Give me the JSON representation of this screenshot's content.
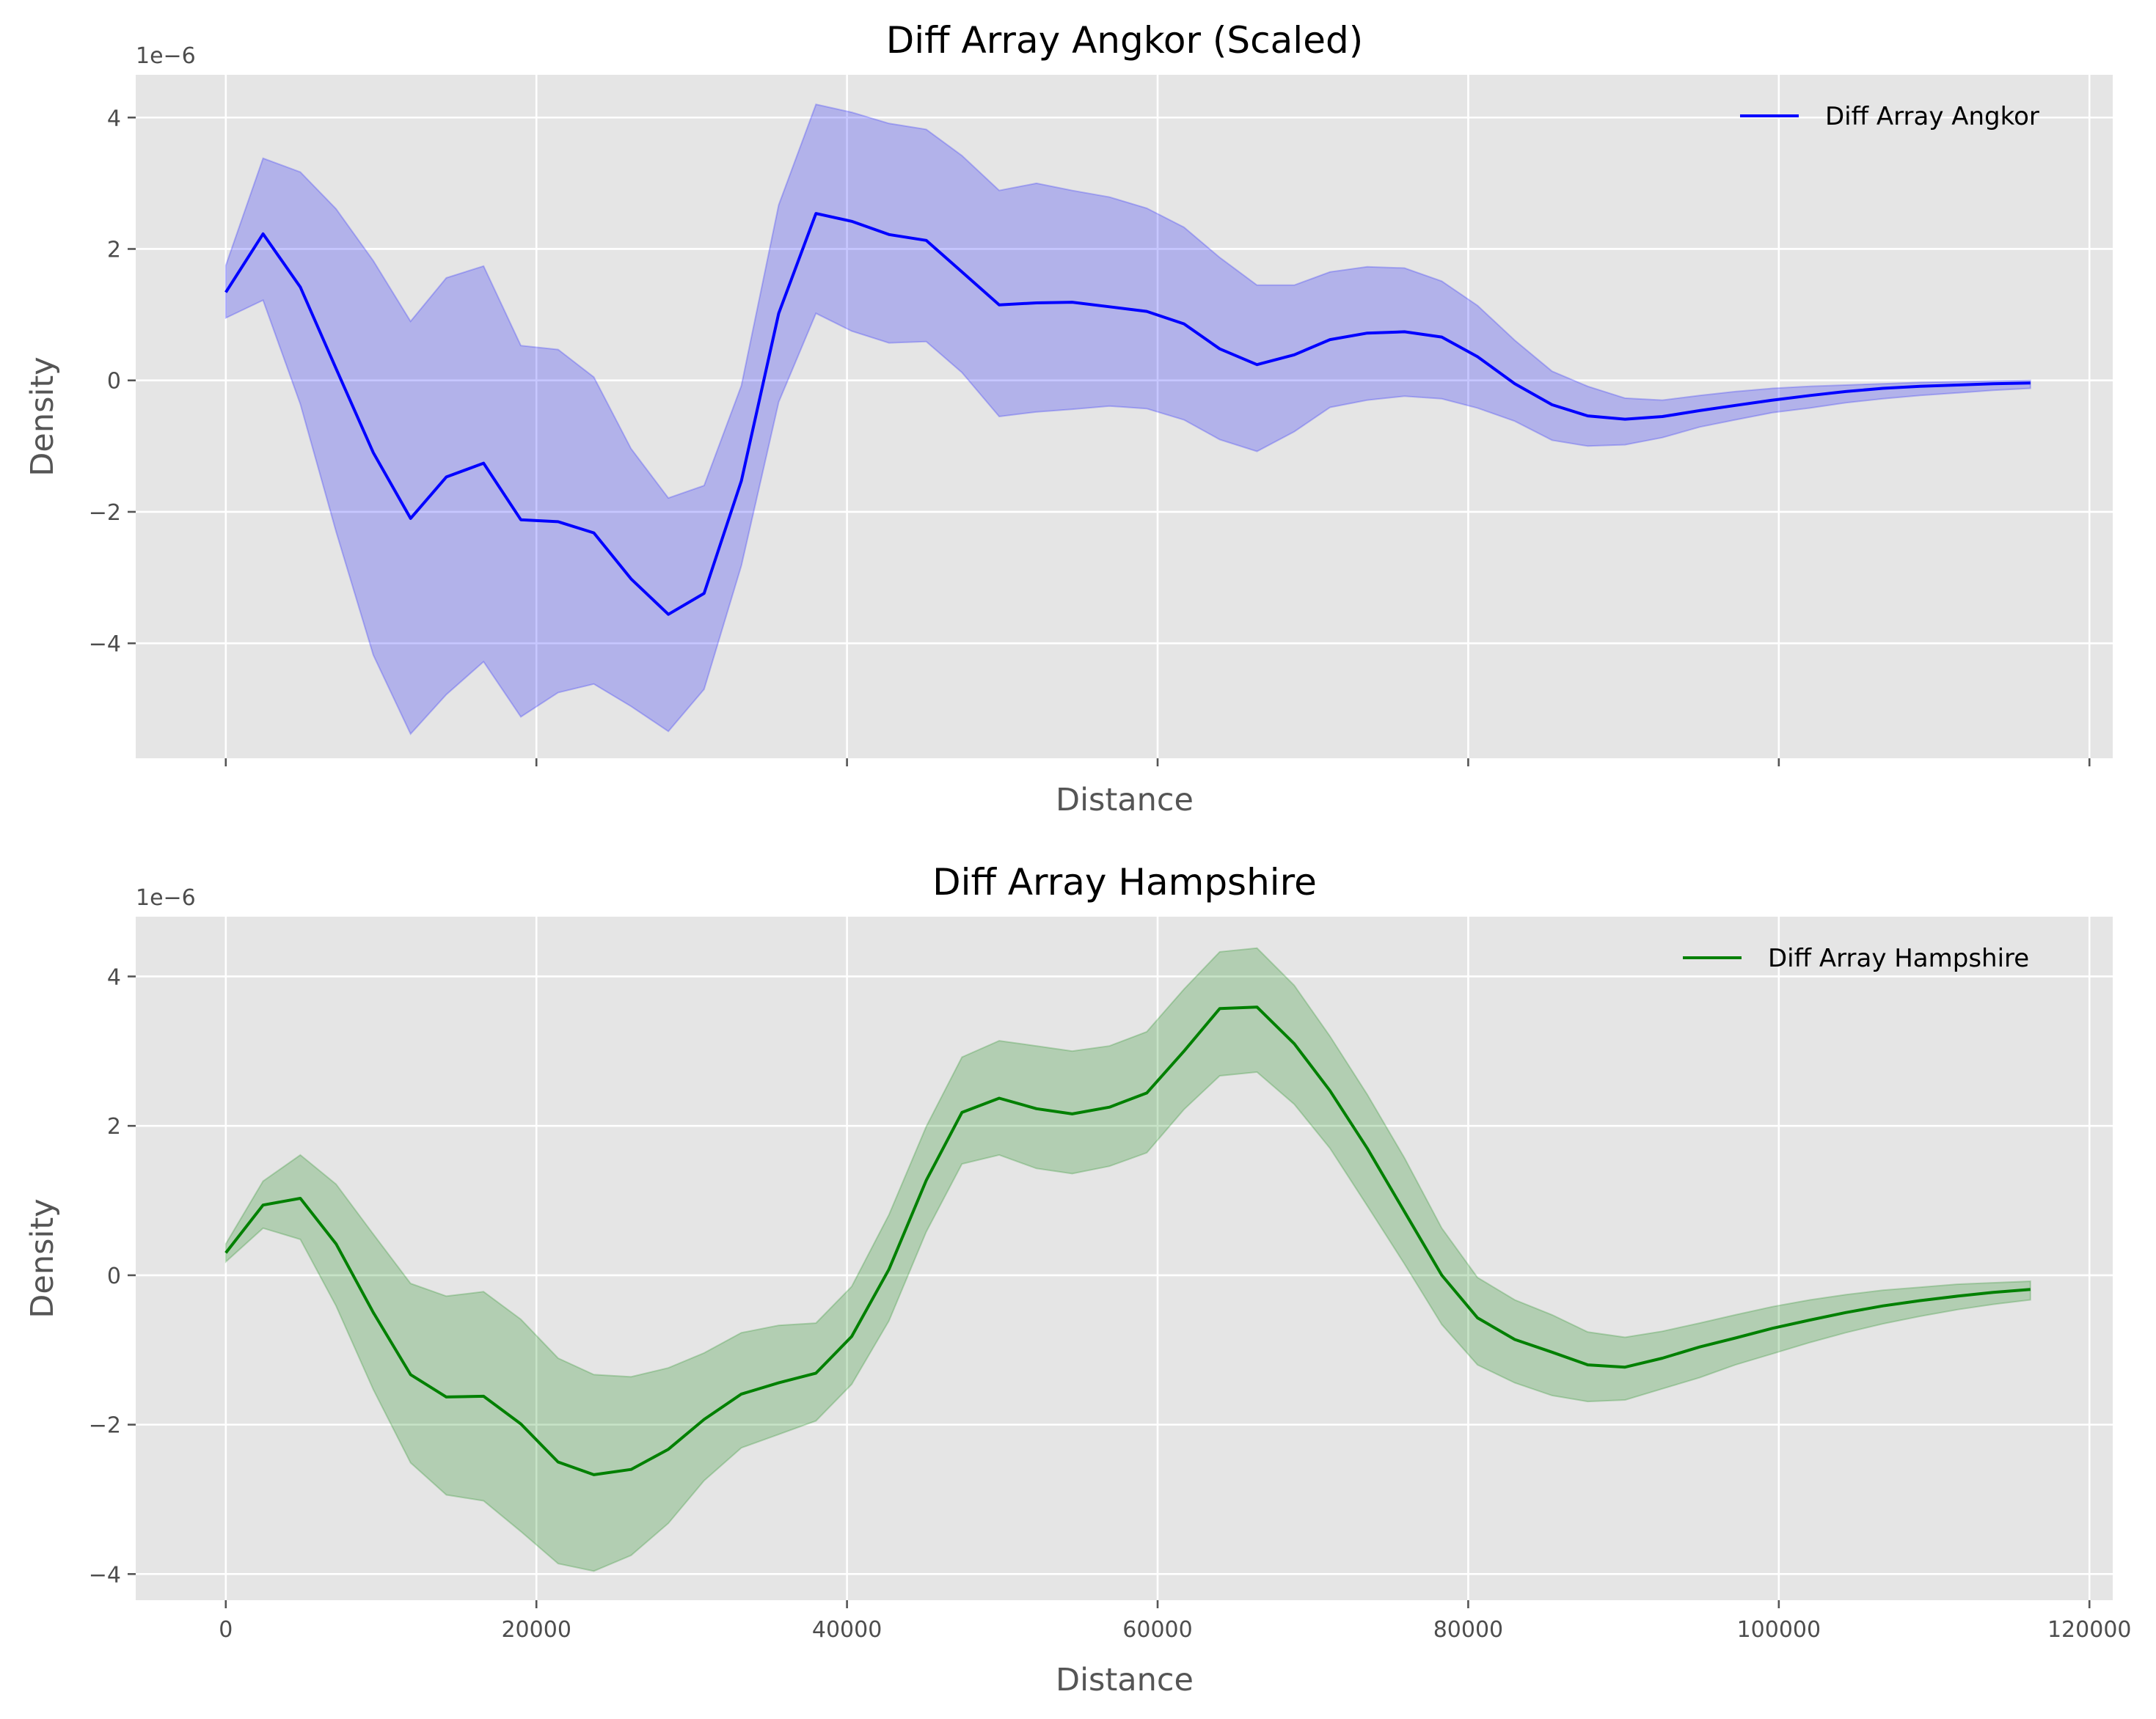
{
  "chart_data": [
    {
      "type": "area",
      "title": "Diff Array Angkor (Scaled)",
      "xlabel": "Distance",
      "ylabel": "Density",
      "y_offset_label": "1e−6",
      "xlim": [
        -5800,
        121500
      ],
      "ylim": [
        -5.75,
        4.65
      ],
      "xticks": [
        0,
        20000,
        40000,
        60000,
        80000,
        100000,
        120000
      ],
      "xtick_labels": [],
      "yticks": [
        -4,
        -2,
        0,
        2,
        4
      ],
      "ytick_labels": [
        "−4",
        "−2",
        "0",
        "2",
        "4"
      ],
      "grid": true,
      "legend": {
        "position": "top-right"
      },
      "series": [
        {
          "name": "Diff Array Angkor",
          "color": "#0000ff",
          "band_color": "#0000ff",
          "x": [
            0,
            2400,
            4800,
            7100,
            9500,
            11900,
            14200,
            16600,
            19000,
            21400,
            23700,
            26100,
            28500,
            30800,
            33200,
            35600,
            38000,
            40300,
            42700,
            45100,
            47400,
            49800,
            52200,
            54500,
            56900,
            59300,
            61700,
            64000,
            66400,
            68800,
            71100,
            73500,
            75900,
            78300,
            80600,
            83000,
            85400,
            87700,
            90100,
            92500,
            94900,
            97200,
            99600,
            102000,
            104300,
            106700,
            109100,
            111500,
            113800,
            116200
          ],
          "y": [
            1.34,
            2.23,
            1.42,
            0.18,
            -1.1,
            -2.1,
            -1.47,
            -1.26,
            -2.12,
            -2.15,
            -2.32,
            -3.02,
            -3.56,
            -3.24,
            -1.53,
            1.02,
            2.54,
            2.42,
            2.22,
            2.13,
            1.65,
            1.15,
            1.18,
            1.19,
            1.12,
            1.05,
            0.86,
            0.48,
            0.24,
            0.39,
            0.62,
            0.72,
            0.74,
            0.66,
            0.36,
            -0.05,
            -0.37,
            -0.54,
            -0.59,
            -0.55,
            -0.46,
            -0.38,
            -0.3,
            -0.23,
            -0.17,
            -0.12,
            -0.09,
            -0.07,
            -0.05,
            -0.04
          ],
          "lower": [
            0.95,
            1.22,
            -0.36,
            -2.3,
            -4.18,
            -5.38,
            -4.78,
            -4.28,
            -5.12,
            -4.75,
            -4.62,
            -4.96,
            -5.34,
            -4.7,
            -2.82,
            -0.33,
            1.02,
            0.75,
            0.57,
            0.59,
            0.12,
            -0.55,
            -0.48,
            -0.44,
            -0.39,
            -0.43,
            -0.6,
            -0.9,
            -1.08,
            -0.78,
            -0.41,
            -0.3,
            -0.24,
            -0.28,
            -0.42,
            -0.62,
            -0.91,
            -1.0,
            -0.98,
            -0.87,
            -0.71,
            -0.6,
            -0.49,
            -0.42,
            -0.34,
            -0.28,
            -0.23,
            -0.19,
            -0.15,
            -0.12
          ],
          "upper": [
            1.75,
            3.38,
            3.17,
            2.61,
            1.82,
            0.9,
            1.56,
            1.74,
            0.53,
            0.47,
            0.05,
            -1.04,
            -1.79,
            -1.6,
            -0.08,
            2.67,
            4.2,
            4.08,
            3.91,
            3.82,
            3.42,
            2.89,
            3.0,
            2.89,
            2.79,
            2.62,
            2.33,
            1.87,
            1.45,
            1.45,
            1.65,
            1.73,
            1.71,
            1.51,
            1.14,
            0.61,
            0.14,
            -0.09,
            -0.27,
            -0.3,
            -0.23,
            -0.17,
            -0.12,
            -0.09,
            -0.07,
            -0.05,
            -0.03,
            -0.02,
            -0.01,
            0.0
          ]
        }
      ]
    },
    {
      "type": "area",
      "title": "Diff Array Hampshire",
      "xlabel": "Distance",
      "ylabel": "Density",
      "y_offset_label": "1e−6",
      "xlim": [
        -5800,
        121500
      ],
      "ylim": [
        -4.35,
        4.8
      ],
      "xticks": [
        0,
        20000,
        40000,
        60000,
        80000,
        100000,
        120000
      ],
      "xtick_labels": [
        "0",
        "20000",
        "40000",
        "60000",
        "80000",
        "100000",
        "120000"
      ],
      "yticks": [
        -4,
        -2,
        0,
        2,
        4
      ],
      "ytick_labels": [
        "−4",
        "−2",
        "0",
        "2",
        "4"
      ],
      "grid": true,
      "legend": {
        "position": "top-right"
      },
      "series": [
        {
          "name": "Diff Array Hampshire",
          "color": "#008000",
          "band_color": "#008000",
          "x": [
            0,
            2400,
            4800,
            7100,
            9500,
            11900,
            14200,
            16600,
            19000,
            21400,
            23700,
            26100,
            28500,
            30800,
            33200,
            35600,
            38000,
            40300,
            42700,
            45100,
            47400,
            49800,
            52200,
            54500,
            56900,
            59300,
            61700,
            64000,
            66400,
            68800,
            71100,
            73500,
            75900,
            78300,
            80600,
            83000,
            85400,
            87700,
            90100,
            92500,
            94900,
            97200,
            99600,
            102000,
            104300,
            106700,
            109100,
            111500,
            113800,
            116200
          ],
          "y": [
            0.3,
            0.94,
            1.03,
            0.42,
            -0.5,
            -1.33,
            -1.63,
            -1.62,
            -1.99,
            -2.5,
            -2.67,
            -2.6,
            -2.33,
            -1.93,
            -1.59,
            -1.44,
            -1.31,
            -0.82,
            0.08,
            1.27,
            2.18,
            2.37,
            2.23,
            2.16,
            2.25,
            2.44,
            3.0,
            3.57,
            3.59,
            3.1,
            2.47,
            1.7,
            0.85,
            0.0,
            -0.57,
            -0.86,
            -1.03,
            -1.2,
            -1.23,
            -1.11,
            -0.96,
            -0.84,
            -0.71,
            -0.6,
            -0.5,
            -0.41,
            -0.34,
            -0.28,
            -0.23,
            -0.19
          ],
          "lower": [
            0.18,
            0.63,
            0.48,
            -0.41,
            -1.53,
            -2.51,
            -2.94,
            -3.02,
            -3.43,
            -3.86,
            -3.96,
            -3.75,
            -3.32,
            -2.75,
            -2.31,
            -2.13,
            -1.95,
            -1.46,
            -0.61,
            0.58,
            1.49,
            1.61,
            1.43,
            1.36,
            1.46,
            1.64,
            2.22,
            2.67,
            2.72,
            2.29,
            1.7,
            0.93,
            0.15,
            -0.66,
            -1.2,
            -1.44,
            -1.61,
            -1.69,
            -1.67,
            -1.52,
            -1.37,
            -1.2,
            -1.05,
            -0.9,
            -0.77,
            -0.65,
            -0.55,
            -0.46,
            -0.39,
            -0.33
          ],
          "upper": [
            0.42,
            1.26,
            1.61,
            1.22,
            0.55,
            -0.11,
            -0.28,
            -0.22,
            -0.59,
            -1.11,
            -1.33,
            -1.36,
            -1.24,
            -1.04,
            -0.77,
            -0.67,
            -0.64,
            -0.15,
            0.81,
            1.99,
            2.92,
            3.14,
            3.07,
            3.0,
            3.07,
            3.26,
            3.83,
            4.33,
            4.38,
            3.88,
            3.2,
            2.42,
            1.57,
            0.63,
            -0.03,
            -0.33,
            -0.53,
            -0.76,
            -0.83,
            -0.75,
            -0.64,
            -0.53,
            -0.42,
            -0.33,
            -0.26,
            -0.2,
            -0.16,
            -0.12,
            -0.1,
            -0.08
          ]
        }
      ]
    }
  ]
}
